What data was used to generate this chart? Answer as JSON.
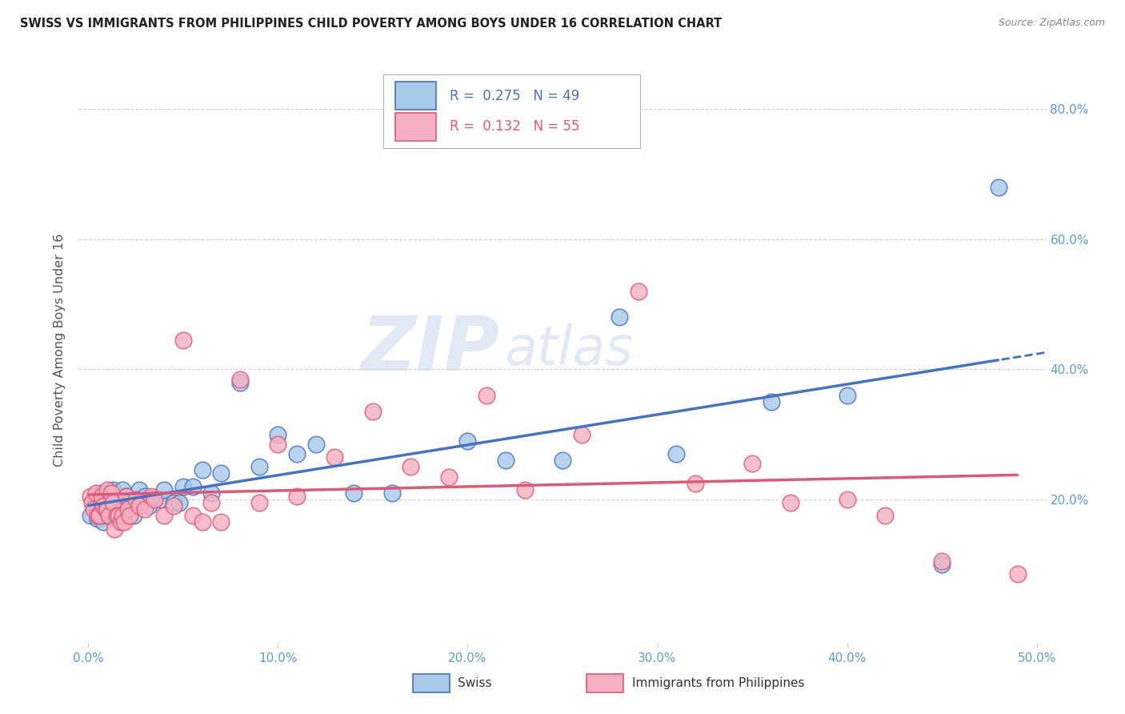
{
  "title": "SWISS VS IMMIGRANTS FROM PHILIPPINES CHILD POVERTY AMONG BOYS UNDER 16 CORRELATION CHART",
  "source": "Source: ZipAtlas.com",
  "ylabel": "Child Poverty Among Boys Under 16",
  "xlabel_ticks": [
    "0.0%",
    "10.0%",
    "20.0%",
    "30.0%",
    "40.0%",
    "50.0%"
  ],
  "xlabel_vals": [
    0.0,
    0.1,
    0.2,
    0.3,
    0.4,
    0.5
  ],
  "ylabel_ticks": [
    "20.0%",
    "40.0%",
    "60.0%",
    "80.0%"
  ],
  "ylabel_vals": [
    0.2,
    0.4,
    0.6,
    0.8
  ],
  "xlim": [
    -0.005,
    0.505
  ],
  "ylim": [
    -0.02,
    0.88
  ],
  "swiss_color": "#a8c8e8",
  "swiss_line_color": "#4472c4",
  "phil_color": "#f4b0c0",
  "phil_line_color": "#e05878",
  "watermark_zip": "ZIP",
  "watermark_atlas": "atlas",
  "legend_R_swiss": "0.275",
  "legend_N_swiss": "49",
  "legend_R_phil": "0.132",
  "legend_N_phil": "55",
  "swiss_x": [
    0.001,
    0.003,
    0.005,
    0.005,
    0.007,
    0.007,
    0.008,
    0.009,
    0.01,
    0.01,
    0.012,
    0.013,
    0.014,
    0.015,
    0.015,
    0.018,
    0.019,
    0.02,
    0.022,
    0.024,
    0.025,
    0.027,
    0.03,
    0.032,
    0.038,
    0.04,
    0.045,
    0.048,
    0.05,
    0.055,
    0.06,
    0.065,
    0.07,
    0.08,
    0.09,
    0.1,
    0.11,
    0.12,
    0.14,
    0.16,
    0.2,
    0.22,
    0.25,
    0.28,
    0.31,
    0.36,
    0.4,
    0.45,
    0.48
  ],
  "swiss_y": [
    0.175,
    0.19,
    0.185,
    0.17,
    0.21,
    0.175,
    0.165,
    0.195,
    0.175,
    0.195,
    0.185,
    0.215,
    0.175,
    0.195,
    0.19,
    0.215,
    0.185,
    0.205,
    0.195,
    0.175,
    0.2,
    0.215,
    0.205,
    0.19,
    0.2,
    0.215,
    0.195,
    0.195,
    0.22,
    0.22,
    0.245,
    0.21,
    0.24,
    0.38,
    0.25,
    0.3,
    0.27,
    0.285,
    0.21,
    0.21,
    0.29,
    0.26,
    0.26,
    0.48,
    0.27,
    0.35,
    0.36,
    0.1,
    0.68
  ],
  "phil_x": [
    0.001,
    0.002,
    0.003,
    0.004,
    0.005,
    0.006,
    0.007,
    0.007,
    0.008,
    0.009,
    0.01,
    0.01,
    0.011,
    0.012,
    0.013,
    0.014,
    0.015,
    0.016,
    0.017,
    0.018,
    0.019,
    0.02,
    0.021,
    0.022,
    0.025,
    0.027,
    0.03,
    0.033,
    0.035,
    0.04,
    0.045,
    0.05,
    0.055,
    0.06,
    0.065,
    0.07,
    0.08,
    0.09,
    0.1,
    0.11,
    0.13,
    0.15,
    0.17,
    0.19,
    0.21,
    0.23,
    0.26,
    0.29,
    0.32,
    0.35,
    0.37,
    0.4,
    0.42,
    0.45,
    0.49
  ],
  "phil_y": [
    0.205,
    0.195,
    0.185,
    0.21,
    0.175,
    0.175,
    0.195,
    0.205,
    0.19,
    0.185,
    0.215,
    0.185,
    0.175,
    0.21,
    0.195,
    0.155,
    0.175,
    0.175,
    0.165,
    0.175,
    0.165,
    0.205,
    0.185,
    0.175,
    0.2,
    0.19,
    0.185,
    0.205,
    0.2,
    0.175,
    0.19,
    0.445,
    0.175,
    0.165,
    0.195,
    0.165,
    0.385,
    0.195,
    0.285,
    0.205,
    0.265,
    0.335,
    0.25,
    0.235,
    0.36,
    0.215,
    0.3,
    0.52,
    0.225,
    0.255,
    0.195,
    0.2,
    0.175,
    0.105,
    0.085
  ]
}
